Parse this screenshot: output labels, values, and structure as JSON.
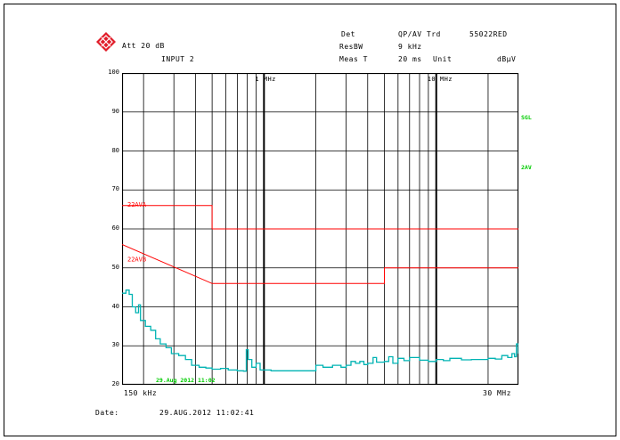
{
  "header": {
    "att": "Att 20 dB",
    "input": "INPUT 2",
    "det_label": "Det",
    "det_value": "QP/AV Trd",
    "id": "55022RED",
    "resbw_label": "ResBW",
    "resbw_value": "9 kHz",
    "meas_label": "Meas T",
    "meas_value": "20 ms",
    "unit_label": "Unit",
    "unit_value": "dBμV"
  },
  "colors": {
    "limit": "#ff0000",
    "trace": "#00b3b3",
    "grid": "#000000",
    "marker": "#00cc00"
  },
  "chart_data": {
    "type": "line",
    "x_scale": "log",
    "xlim_hz": [
      150000,
      30000000
    ],
    "ylim": [
      20,
      100
    ],
    "ylabel_ticks": [
      "20",
      "30",
      "40",
      "50",
      "60",
      "70",
      "80",
      "90",
      "100"
    ],
    "x_edge_labels": [
      "150 kHz",
      "30 MHz"
    ],
    "x_mid_labels": [
      "1 MHz",
      "10 MHz"
    ],
    "right_labels": [
      "SGL",
      "2AV"
    ],
    "limit_lines": [
      {
        "name": "22AVA",
        "points": [
          [
            150000,
            66
          ],
          [
            500000,
            66
          ],
          [
            500000,
            60
          ],
          [
            30000000,
            60
          ]
        ]
      },
      {
        "name": "22AVB",
        "points": [
          [
            150000,
            56
          ],
          [
            500000,
            46
          ],
          [
            5000000,
            46
          ],
          [
            5000000,
            50
          ],
          [
            30000000,
            50
          ]
        ]
      }
    ],
    "series": [
      {
        "points": [
          [
            150000,
            43.5
          ],
          [
            158000,
            44.3
          ],
          [
            165000,
            43.2
          ],
          [
            172000,
            40
          ],
          [
            180000,
            38.5
          ],
          [
            187000,
            40.5
          ],
          [
            192000,
            36.5
          ],
          [
            205000,
            35
          ],
          [
            220000,
            34
          ],
          [
            235000,
            31.8
          ],
          [
            250000,
            30.5
          ],
          [
            270000,
            29.5
          ],
          [
            290000,
            28
          ],
          [
            320000,
            27.5
          ],
          [
            350000,
            26.5
          ],
          [
            380000,
            25
          ],
          [
            420000,
            24.5
          ],
          [
            460000,
            24.3
          ],
          [
            500000,
            24
          ],
          [
            560000,
            24.2
          ],
          [
            620000,
            23.8
          ],
          [
            700000,
            23.6
          ],
          [
            760000,
            23.5
          ],
          [
            790000,
            29
          ],
          [
            810000,
            26.5
          ],
          [
            850000,
            24.5
          ],
          [
            900000,
            25.5
          ],
          [
            950000,
            23.8
          ],
          [
            1100000,
            23.6
          ],
          [
            1400000,
            23.6
          ],
          [
            1800000,
            23.6
          ],
          [
            2000000,
            25
          ],
          [
            2200000,
            24.5
          ],
          [
            2500000,
            25
          ],
          [
            2800000,
            24.5
          ],
          [
            3000000,
            25
          ],
          [
            3200000,
            26
          ],
          [
            3400000,
            25.5
          ],
          [
            3600000,
            26
          ],
          [
            3800000,
            25.2
          ],
          [
            4000000,
            25.5
          ],
          [
            4300000,
            27
          ],
          [
            4500000,
            25.8
          ],
          [
            5000000,
            26
          ],
          [
            5300000,
            27.2
          ],
          [
            5600000,
            25.5
          ],
          [
            6000000,
            26.8
          ],
          [
            6500000,
            26.2
          ],
          [
            7000000,
            27
          ],
          [
            8000000,
            26.3
          ],
          [
            9000000,
            26
          ],
          [
            10000000,
            26.5
          ],
          [
            11000000,
            26.2
          ],
          [
            12000000,
            26.8
          ],
          [
            14000000,
            26.4
          ],
          [
            16000000,
            26.5
          ],
          [
            18000000,
            26.5
          ],
          [
            20000000,
            26.8
          ],
          [
            22000000,
            26.6
          ],
          [
            24000000,
            27.5
          ],
          [
            26000000,
            27
          ],
          [
            27500000,
            28
          ],
          [
            28500000,
            27.2
          ],
          [
            29200000,
            30.5
          ],
          [
            30000000,
            28
          ]
        ]
      }
    ],
    "marker": "29.Aug 2012 11:02"
  },
  "footer": {
    "date_label": "Date:",
    "date_value": "29.AUG.2012  11:02:41"
  }
}
